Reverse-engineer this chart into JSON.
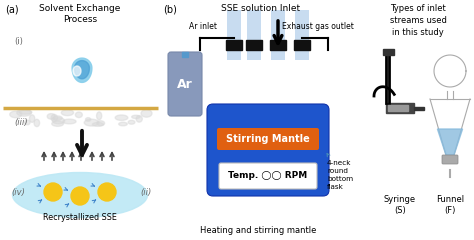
{
  "fig_width": 4.74,
  "fig_height": 2.4,
  "dpi": 100,
  "bg_color": "#ffffff",
  "panel_a": {
    "label": "(a)",
    "title": "Solvent Exchange\nProcess",
    "label_i": "(i)",
    "label_ii": "(ii)",
    "label_iii": "(iii)",
    "label_iv": "(iv)",
    "bottom_label": "Recrystallized SSE",
    "divider_color": "#D4A843",
    "oval_color": "#BDE8F5",
    "drop_color_outer": "#87CEEB",
    "drop_color_inner": "#4A9FD4",
    "particle_color": "#F5C518",
    "arrow_up_color": "#555555",
    "arrow_down_color": "#111111",
    "cloud_color": "#E0E0E0",
    "blue_arrow_color": "#4488CC"
  },
  "panel_b": {
    "label": "(b)",
    "title": "SSE solution Inlet",
    "ar_inlet_label": "Ar inlet",
    "exhaust_label": "Exhaust gas outlet",
    "flask_label": "4-neck\nround\nbottom\nflask",
    "mantle_label": "Stirring Mantle",
    "temp_label": "Temp. ◯◯ RPM",
    "bottom_label": "Heating and stirring mantle",
    "flask_body_color": "#1E55CC",
    "flask_neck_color": "#C8DCF0",
    "mantle_label_bg": "#E06010",
    "ar_cylinder_color": "#8899BB",
    "ar_text_color": "#FFFFFF",
    "stopper_color": "#111111",
    "arrow_color": "#111111",
    "flask_arrow_color": "#4488BB"
  },
  "panel_c": {
    "title": "Types of inlet\nstreams used\nin this study",
    "syringe_label": "Syringe\n(S)",
    "funnel_label": "Funnel\n(F)",
    "funnel_liquid_color": "#88BBDD",
    "funnel_outline_color": "#AAAAAA"
  }
}
